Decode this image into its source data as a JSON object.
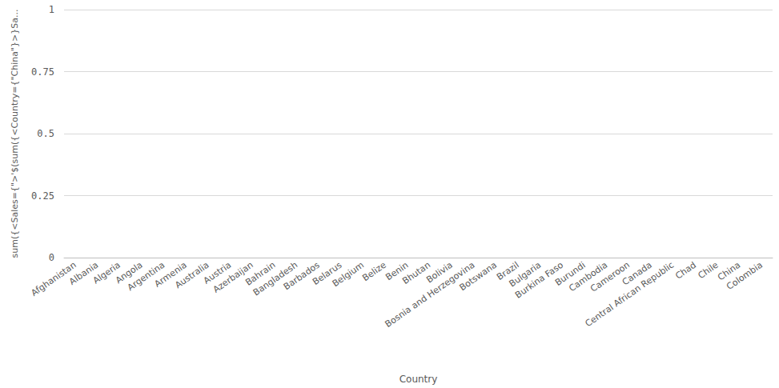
{
  "chart_data": {
    "type": "bar",
    "x_label": "Country",
    "y_label": "sum({<Sales={\">'$(sum({<Country={\"China\"}>}Sa...",
    "categories": [
      "Afghanistan",
      "Albania",
      "Algeria",
      "Angola",
      "Argentina",
      "Armenia",
      "Australia",
      "Austria",
      "Azerbaijan",
      "Bahrain",
      "Bangladesh",
      "Barbados",
      "Belarus",
      "Belgium",
      "Belize",
      "Benin",
      "Bhutan",
      "Bolivia",
      "Bosnia and Herzegovina",
      "Botswana",
      "Brazil",
      "Bulgaria",
      "Burkina Faso",
      "Burundi",
      "Cambodia",
      "Cameroon",
      "Canada",
      "Central African Republic",
      "Chad",
      "Chile",
      "China",
      "Colombia"
    ],
    "values": [
      0,
      0,
      0,
      0,
      0,
      0,
      0,
      0,
      0,
      0,
      0,
      0,
      0,
      0,
      0,
      0,
      0,
      0,
      0,
      0,
      0,
      0,
      0,
      0,
      0,
      0,
      0,
      0,
      0,
      0,
      0,
      0
    ],
    "color": "#4477aa",
    "ylim": [
      0,
      1
    ],
    "yticks": [
      0,
      0.25,
      0.5,
      0.75,
      1
    ],
    "grid": true
  }
}
